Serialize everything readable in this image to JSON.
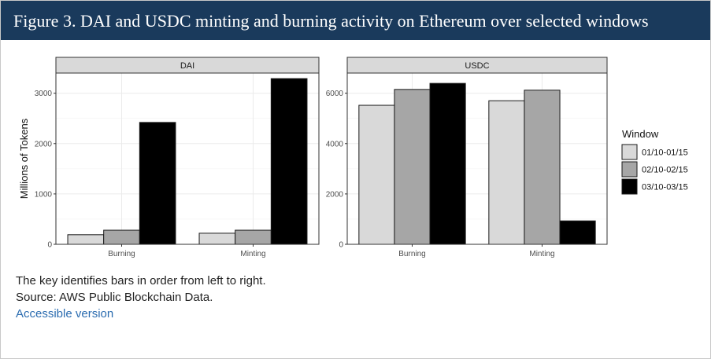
{
  "title": "Figure 3. DAI and USDC minting and burning activity on Ethereum over selected windows",
  "notes": {
    "key_note": "The key identifies bars in order from left to right.",
    "source": "Source: AWS Public Blockchain Data.",
    "accessible_link": "Accessible version"
  },
  "chart_data": {
    "type": "bar",
    "ylabel": "Millions of Tokens",
    "legend": {
      "title": "Window",
      "position": "right",
      "entries": [
        "01/10-01/15",
        "02/10-02/15",
        "03/10-03/15"
      ]
    },
    "series_colors": [
      "#d9d9d9",
      "#a6a6a6",
      "#000000"
    ],
    "grid": true,
    "panels": [
      {
        "name": "DAI",
        "categories": [
          "Burning",
          "Minting"
        ],
        "ylim": [
          0,
          3400
        ],
        "yticks": [
          0,
          1000,
          2000,
          3000
        ],
        "series": [
          {
            "name": "01/10-01/15",
            "values": [
              190,
              220
            ]
          },
          {
            "name": "02/10-02/15",
            "values": [
              280,
              280
            ]
          },
          {
            "name": "03/10-03/15",
            "values": [
              2420,
              3290
            ]
          }
        ]
      },
      {
        "name": "USDC",
        "categories": [
          "Burning",
          "Minting"
        ],
        "ylim": [
          0,
          6800
        ],
        "yticks": [
          0,
          2000,
          4000,
          6000
        ],
        "series": [
          {
            "name": "01/10-01/15",
            "values": [
              5520,
              5700
            ]
          },
          {
            "name": "02/10-02/15",
            "values": [
              6150,
              6120
            ]
          },
          {
            "name": "03/10-03/15",
            "values": [
              6390,
              930
            ]
          }
        ]
      }
    ]
  }
}
